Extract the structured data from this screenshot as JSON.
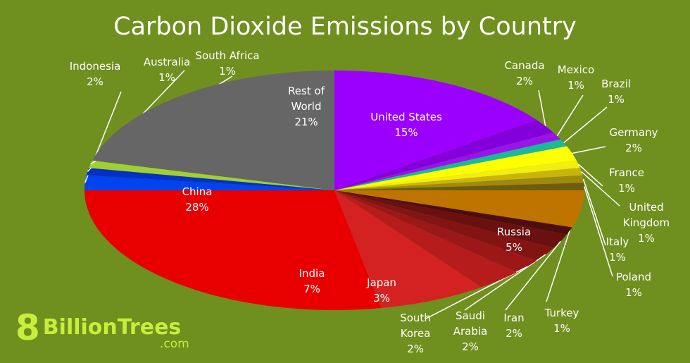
{
  "chart_data": {
    "type": "pie",
    "title": "Carbon Dioxide Emissions by Country",
    "categories": [
      "United States",
      "Canada",
      "Mexico",
      "Brazil",
      "Germany",
      "France",
      "United Kingdom",
      "Italy",
      "Poland",
      "Russia",
      "Turkey",
      "Iran",
      "Saudi Arabia",
      "South Korea",
      "Japan",
      "India",
      "China",
      "Indonesia",
      "Australia",
      "South Africa",
      "Rest of World"
    ],
    "values": [
      15,
      2,
      1,
      1,
      2,
      1,
      1,
      1,
      1,
      5,
      1,
      2,
      2,
      2,
      3,
      7,
      28,
      2,
      1,
      1,
      21
    ],
    "value_labels": [
      "15%",
      "2%",
      "1%",
      "1%",
      "2%",
      "1%",
      "1%",
      "1%",
      "1%",
      "5%",
      "1%",
      "2%",
      "2%",
      "2%",
      "3%",
      "7%",
      "28%",
      "2%",
      "1%",
      "1%",
      "21%"
    ],
    "colors": [
      "#9b00ff",
      "#8300db",
      "#9a14e8",
      "#19b99a",
      "#ffff00",
      "#f2ee10",
      "#c9b50a",
      "#9e8a10",
      "#6e5d0c",
      "#c07400",
      "#4e0d0d",
      "#6a1010",
      "#841414",
      "#9c1818",
      "#b61c1c",
      "#d42222",
      "#e80000",
      "#0044ee",
      "#0530c8",
      "#a0d030",
      "#666666"
    ]
  },
  "logo": {
    "mark": "8",
    "name": "BillionTrees",
    "domain": ".com"
  }
}
